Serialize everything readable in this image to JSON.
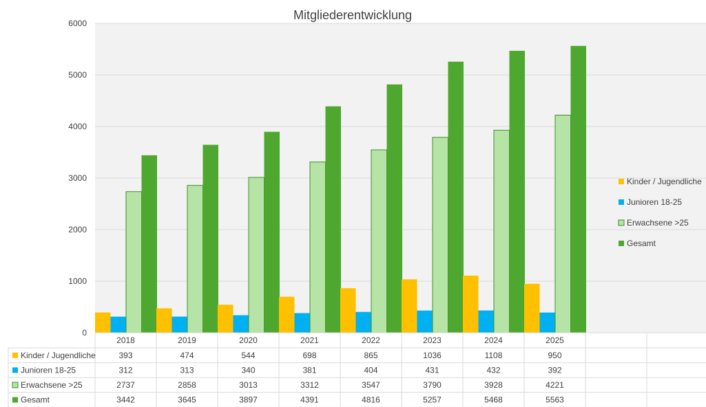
{
  "chart_data": {
    "type": "bar",
    "title": "Mitgliederentwicklung",
    "categories": [
      "2018",
      "2019",
      "2020",
      "2021",
      "2022",
      "2023",
      "2024",
      "2025"
    ],
    "table_extra_columns": 2,
    "ylim": [
      0,
      6000
    ],
    "yticks": [
      0,
      1000,
      2000,
      3000,
      4000,
      5000,
      6000
    ],
    "grid": true,
    "legend_position": "right",
    "series": [
      {
        "name": "Kinder / Jugendliche",
        "color": "#FFC000",
        "values": [
          393,
          474,
          544,
          698,
          865,
          1036,
          1108,
          950
        ]
      },
      {
        "name": "Junioren        18-25",
        "color": "#00B0F0",
        "values": [
          312,
          313,
          340,
          381,
          404,
          431,
          432,
          392
        ]
      },
      {
        "name": "Erwachsene   >25",
        "color": "#B6E3A6",
        "stroke": "#3E8F2A",
        "values": [
          2737,
          2858,
          3013,
          3312,
          3547,
          3790,
          3928,
          4221
        ]
      },
      {
        "name": "Gesamt",
        "color": "#4EA72E",
        "values": [
          3442,
          3645,
          3897,
          4391,
          4816,
          5257,
          5468,
          5563
        ]
      }
    ]
  }
}
